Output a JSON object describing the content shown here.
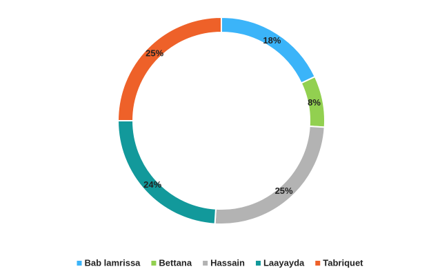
{
  "chart_data": {
    "type": "donut",
    "categories": [
      "Bab lamrissa",
      "Bettana",
      "Hassain",
      "Laayayda",
      "Tabriquet"
    ],
    "values": [
      18,
      8,
      25,
      24,
      25
    ],
    "value_labels": [
      "18%",
      "8%",
      "25%",
      "24%",
      "25%"
    ],
    "colors": [
      "#3bb4f9",
      "#92d050",
      "#b3b3b3",
      "#12999b",
      "#ee6129"
    ],
    "legend": "bottom"
  }
}
